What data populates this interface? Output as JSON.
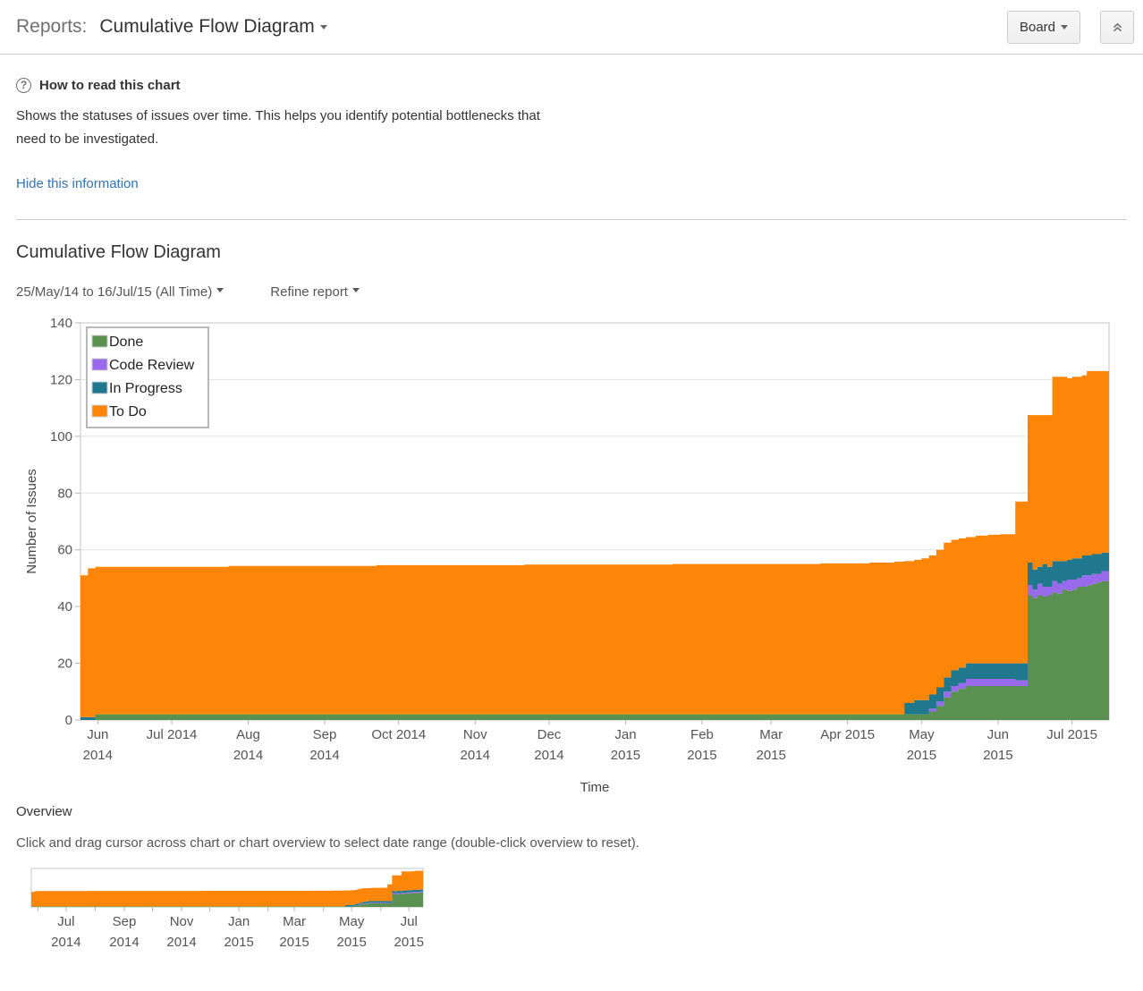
{
  "header": {
    "section_label": "Reports:",
    "title": "Cumulative Flow Diagram",
    "board_button": "Board"
  },
  "icons": {
    "help": "?"
  },
  "info": {
    "heading": "How to read this chart",
    "body": "Shows the statuses of issues over time. This helps you identify potential bottlenecks that need to be investigated.",
    "hide_link": "Hide this information"
  },
  "report": {
    "title": "Cumulative Flow Diagram",
    "date_range": "25/May/14 to 16/Jul/15 (All Time)",
    "refine_label": "Refine report"
  },
  "overview": {
    "heading": "Overview",
    "instruction": "Click and drag cursor across chart or chart overview to select date range (double-click overview to reset)."
  },
  "chart_data": {
    "type": "area",
    "stacked": true,
    "title": "Cumulative Flow Diagram",
    "xlabel": "Time",
    "ylabel": "Number of Issues",
    "x_unit": "days since 25/May/2014",
    "x_start_date": "25/May/14",
    "x_end_date": "16/Jul/15",
    "x_range": [
      0,
      417
    ],
    "ylim": [
      0,
      140
    ],
    "y_ticks": [
      0,
      20,
      40,
      60,
      80,
      100,
      120,
      140
    ],
    "grid": true,
    "legend_position": "top-left",
    "legend_order": [
      "Done",
      "Code Review",
      "In Progress",
      "To Do"
    ],
    "x": [
      0,
      3,
      6,
      15,
      60,
      120,
      180,
      240,
      300,
      320,
      330,
      334,
      338,
      341,
      344,
      347,
      350,
      353,
      356,
      359,
      363,
      368,
      373,
      377,
      379,
      382,
      384,
      386,
      388,
      390,
      392,
      394,
      396,
      398,
      400,
      402,
      404,
      406,
      408,
      410,
      412,
      414,
      417
    ],
    "series": [
      {
        "name": "Done",
        "color": "#5A9150",
        "values": [
          0,
          0,
          2,
          2,
          2,
          2,
          2,
          2,
          2,
          2,
          2,
          2,
          2,
          2,
          3,
          5,
          8,
          10,
          11,
          12,
          12,
          12,
          12,
          12,
          12,
          12,
          44,
          43,
          44,
          43.5,
          44,
          45,
          44.5,
          46,
          45.5,
          46,
          47,
          47,
          47.5,
          48,
          48.5,
          49,
          49
        ]
      },
      {
        "name": "Code Review",
        "color": "#9A6AEC",
        "values": [
          0,
          0,
          0,
          0,
          0,
          0,
          0,
          0,
          0,
          0,
          0,
          0,
          0,
          0,
          1,
          1.5,
          2,
          2,
          2,
          2.5,
          2.5,
          2.5,
          2.5,
          2.5,
          2,
          2,
          3.5,
          3,
          4,
          3.5,
          3,
          4,
          3.5,
          3,
          4,
          3.5,
          3,
          4,
          3.5,
          3.5,
          3,
          3.5,
          3.5
        ]
      },
      {
        "name": "In Progress",
        "color": "#20788F",
        "values": [
          1,
          1,
          0,
          0,
          0,
          0,
          0,
          0,
          0,
          0,
          0,
          4,
          5,
          5,
          5,
          5,
          5,
          5.5,
          5.5,
          5.5,
          5.5,
          5.5,
          5.5,
          5.5,
          6,
          6,
          8,
          7,
          6,
          8,
          7,
          7,
          8,
          7,
          7,
          7.5,
          7,
          7,
          7,
          7,
          7,
          6.5,
          7
        ]
      },
      {
        "name": "To Do",
        "color": "#FD8608",
        "values": [
          50,
          52.5,
          52,
          52,
          52.3,
          52.6,
          52.8,
          53,
          53.2,
          53.5,
          53.8,
          50,
          49.5,
          50,
          49,
          48.5,
          47.5,
          46,
          45.5,
          44.5,
          45,
          45.3,
          45.5,
          45.5,
          57,
          57,
          52,
          54.5,
          53.5,
          52.5,
          53.5,
          65,
          65,
          65,
          64,
          64,
          64,
          63.5,
          65,
          64.5,
          64.5,
          64,
          63.5
        ]
      }
    ],
    "x_tick_labels": [
      {
        "day": 7,
        "line1": "Jun",
        "line2": "2014"
      },
      {
        "day": 37,
        "line1": "Jul 2014"
      },
      {
        "day": 68,
        "line1": "Aug",
        "line2": "2014"
      },
      {
        "day": 99,
        "line1": "Sep",
        "line2": "2014"
      },
      {
        "day": 129,
        "line1": "Oct 2014"
      },
      {
        "day": 160,
        "line1": "Nov",
        "line2": "2014"
      },
      {
        "day": 190,
        "line1": "Dec",
        "line2": "2014"
      },
      {
        "day": 221,
        "line1": "Jan",
        "line2": "2015"
      },
      {
        "day": 252,
        "line1": "Feb",
        "line2": "2015"
      },
      {
        "day": 280,
        "line1": "Mar",
        "line2": "2015"
      },
      {
        "day": 311,
        "line1": "Apr 2015"
      },
      {
        "day": 341,
        "line1": "May",
        "line2": "2015"
      },
      {
        "day": 372,
        "line1": "Jun",
        "line2": "2015"
      },
      {
        "day": 402,
        "line1": "Jul 2015"
      }
    ],
    "overview_x_tick_labels": [
      {
        "day": 37,
        "line1": "Jul",
        "line2": "2014"
      },
      {
        "day": 99,
        "line1": "Sep",
        "line2": "2014"
      },
      {
        "day": 160,
        "line1": "Nov",
        "line2": "2014"
      },
      {
        "day": 221,
        "line1": "Jan",
        "line2": "2015"
      },
      {
        "day": 280,
        "line1": "Mar",
        "line2": "2015"
      },
      {
        "day": 341,
        "line1": "May",
        "line2": "2015"
      },
      {
        "day": 402,
        "line1": "Jul",
        "line2": "2015"
      }
    ],
    "overview_minor_tick_days": [
      7,
      68,
      129,
      190,
      252,
      311,
      372
    ]
  }
}
